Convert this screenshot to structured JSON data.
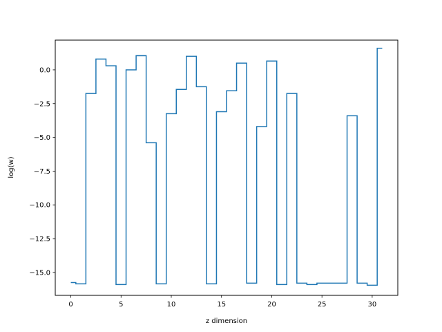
{
  "chart_data": {
    "type": "line",
    "drawstyle": "steps-mid",
    "title": "",
    "xlabel": "z dimension",
    "ylabel": "log(w)",
    "xlim": [
      -1.55,
      32.55
    ],
    "ylim": [
      -16.7,
      2.2
    ],
    "xticks": [
      0,
      5,
      10,
      15,
      20,
      25,
      30
    ],
    "yticks": [
      0.0,
      -2.5,
      -5.0,
      -7.5,
      -10.0,
      -12.5,
      -15.0
    ],
    "xtick_labels": [
      "0",
      "5",
      "10",
      "15",
      "20",
      "25",
      "30"
    ],
    "ytick_labels": [
      "0.0",
      "−2.5",
      "−5.0",
      "−7.5",
      "−10.0",
      "−12.5",
      "−15.0"
    ],
    "grid": false,
    "legend": "none",
    "series_color": "#1f77b4",
    "series": [
      {
        "x": [
          0,
          1,
          2,
          3,
          4,
          5,
          6,
          7,
          8,
          9,
          10,
          11,
          12,
          13,
          14,
          15,
          16,
          17,
          18,
          19,
          20,
          21,
          22,
          23,
          24,
          25,
          26,
          27,
          28,
          29,
          30,
          31
        ],
        "values": [
          -15.75,
          -15.85,
          -1.75,
          0.8,
          0.3,
          -15.9,
          0.0,
          1.05,
          -5.4,
          -15.85,
          -3.25,
          -1.45,
          1.0,
          -1.25,
          -15.85,
          -3.1,
          -1.55,
          0.5,
          -15.8,
          -4.2,
          0.65,
          -15.9,
          -1.75,
          -15.8,
          -15.9,
          -15.8,
          -15.8,
          -15.8,
          -3.4,
          -15.8,
          -15.95,
          1.6
        ]
      }
    ]
  }
}
